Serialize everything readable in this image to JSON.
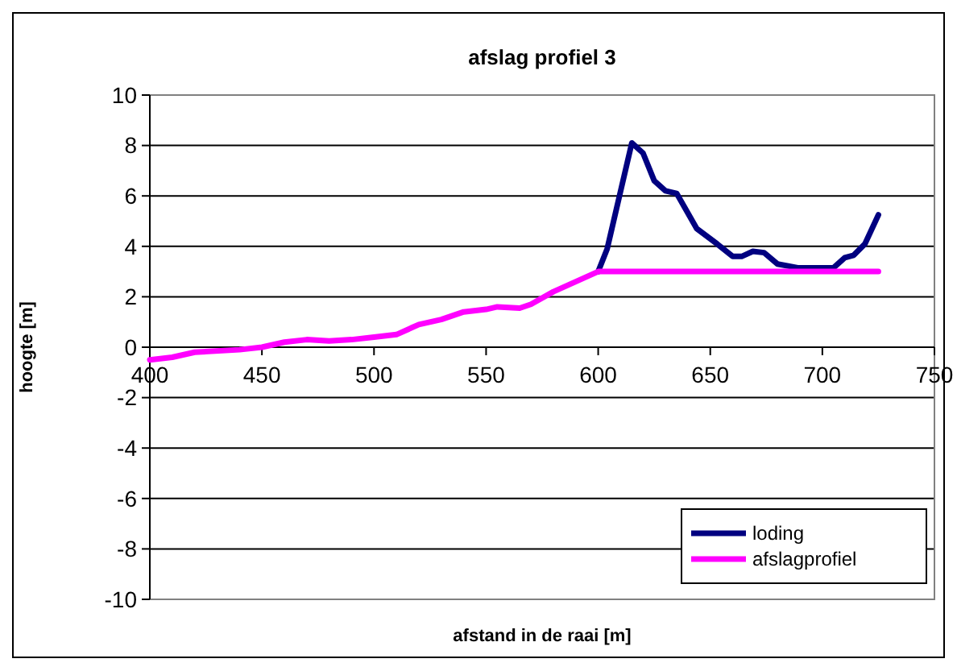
{
  "chart_data": {
    "type": "line",
    "title": "afslag profiel 3",
    "xlabel": "afstand in de raai [m]",
    "ylabel": "hoogte [m]",
    "xlim": [
      400,
      750
    ],
    "xticks": [
      400,
      450,
      500,
      550,
      600,
      650,
      700,
      750
    ],
    "ylim": [
      -10,
      10
    ],
    "yticks": [
      -10,
      -8,
      -6,
      -4,
      -2,
      0,
      2,
      4,
      6,
      8,
      10
    ],
    "grid": "y",
    "legend": "bottom right",
    "marker": "none",
    "line_style": "solid",
    "series": [
      {
        "name": "loding",
        "color": "#000080",
        "x": [
          600,
          604,
          615,
          620,
          625,
          630,
          635,
          644,
          653,
          660,
          664,
          669,
          674,
          680,
          689,
          705,
          710,
          714,
          719,
          725
        ],
        "values": [
          3.0,
          3.9,
          8.1,
          7.7,
          6.6,
          6.2,
          6.1,
          4.7,
          4.1,
          3.6,
          3.6,
          3.8,
          3.75,
          3.3,
          3.15,
          3.15,
          3.55,
          3.65,
          4.1,
          5.25
        ]
      },
      {
        "name": "afslagprofiel",
        "color": "#ff00ff",
        "x": [
          400,
          410,
          420,
          440,
          450,
          460,
          470,
          480,
          490,
          500,
          510,
          520,
          530,
          540,
          550,
          555,
          565,
          570,
          580,
          590,
          600,
          725
        ],
        "values": [
          -0.5,
          -0.4,
          -0.2,
          -0.1,
          0,
          0.2,
          0.3,
          0.25,
          0.3,
          0.4,
          0.5,
          0.9,
          1.1,
          1.4,
          1.5,
          1.6,
          1.55,
          1.7,
          2.2,
          2.6,
          3.0,
          3.0
        ]
      }
    ]
  }
}
